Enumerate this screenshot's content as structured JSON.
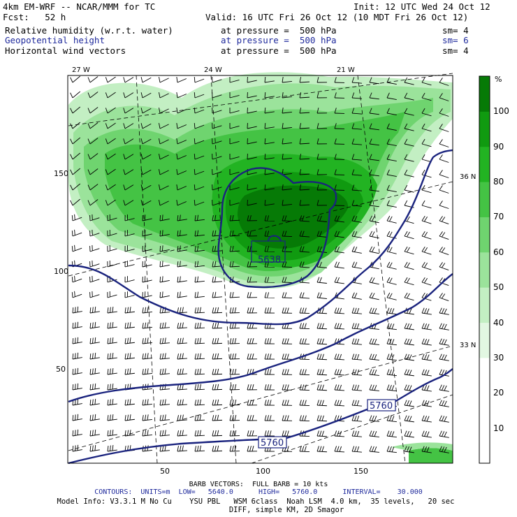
{
  "header": {
    "model": "4km EM-WRF -- NCAR/MMM for TC",
    "fcst": "Fcst:   52 h",
    "init": "Init: 12 UTC Wed 24 Oct 12",
    "valid": "Valid: 16 UTC Fri 26 Oct 12 (10 MDT Fri 26 Oct 12)",
    "fields": [
      {
        "name": "Relative humidity (w.r.t. water)",
        "level": "at pressure =  500 hPa",
        "sm": "sm= 4",
        "color": "#000000"
      },
      {
        "name": "Geopotential height",
        "level": "at pressure =  500 hPa",
        "sm": "sm= 6",
        "color": "#1f2a9c"
      },
      {
        "name": "Horizontal wind vectors",
        "level": "at pressure =  500 hPa",
        "sm": "sm= 4",
        "color": "#000000"
      }
    ]
  },
  "map": {
    "lon_labels": [
      "27 W",
      "24 W",
      "21 W"
    ],
    "lat_labels": [
      "36 N",
      "33 N"
    ],
    "y_ticks": [
      "150",
      "100",
      "50"
    ],
    "x_ticks": [
      "50",
      "100",
      "150"
    ],
    "contour_labels": [
      "5638",
      "5760",
      "5760"
    ],
    "contour_color": "#1a237e"
  },
  "colorbar": {
    "unit": "%",
    "labels": [
      "100",
      "90",
      "80",
      "70",
      "60",
      "50",
      "40",
      "30",
      "20",
      "10"
    ],
    "colors": [
      "#067a06",
      "#109a10",
      "#22b322",
      "#44c344",
      "#6fd46f",
      "#9be39b",
      "#c3efc3",
      "#e2f7e2",
      "#ffffff",
      "#ffffff",
      "#ffffff"
    ]
  },
  "footer": {
    "barb": "BARB VECTORS:  FULL BARB = 10 kts",
    "contours_prefix": "CONTOURS:  UNITS=m  LOW=   5640.0      HIGH=   5760.0      INTERVAL=    30.000",
    "model_info": "Model Info: V3.3.1 M No Cu    YSU PBL   WSM 6class  Noah LSM  4.0 km,  35 levels,   20 sec",
    "diff": "DIFF, simple KM, 2D Smagor"
  }
}
